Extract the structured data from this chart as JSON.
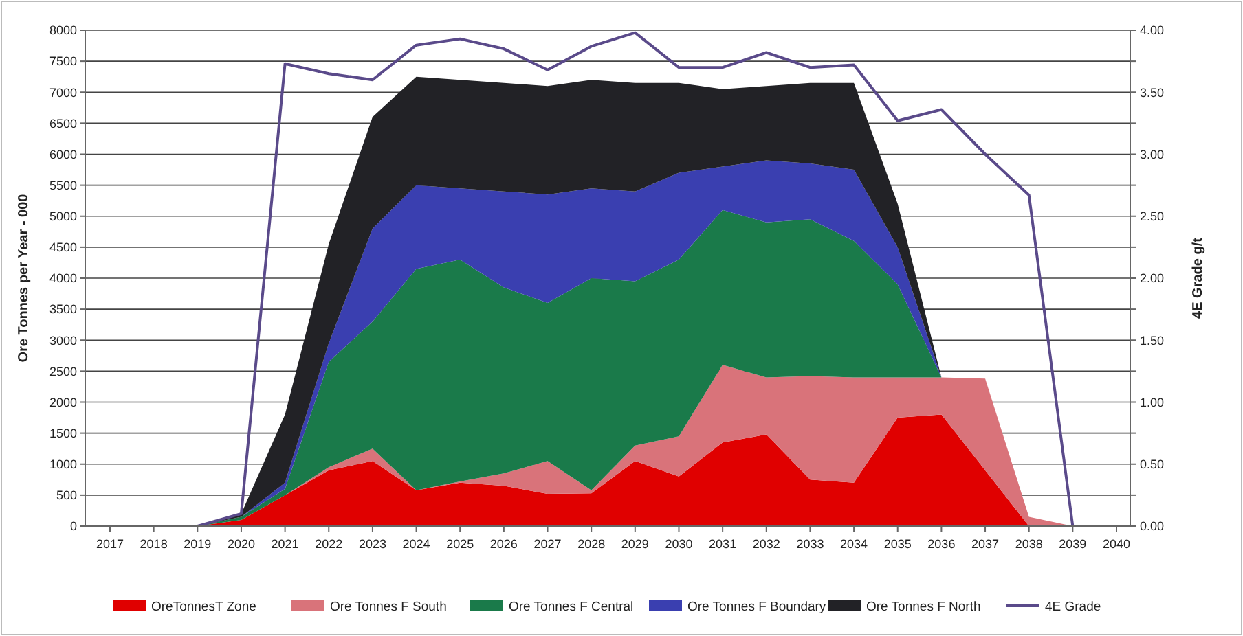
{
  "chart_data": {
    "type": "area",
    "stacked": true,
    "ylabel": "Ore Tonnes per Year - 000",
    "y2label": "4E Grade g/t",
    "categories": [
      "2017",
      "2018",
      "2019",
      "2020",
      "2021",
      "2022",
      "2023",
      "2024",
      "2025",
      "2026",
      "2027",
      "2028",
      "2029",
      "2030",
      "2031",
      "2032",
      "2033",
      "2034",
      "2035",
      "2036",
      "2037",
      "2038",
      "2039",
      "2040"
    ],
    "series": [
      {
        "name": "OreTonnesT Zone",
        "color": "#e00000",
        "values": [
          0,
          0,
          0,
          100,
          500,
          900,
          1050,
          580,
          700,
          650,
          520,
          530,
          1050,
          800,
          1350,
          1480,
          750,
          700,
          1750,
          1800,
          900,
          0,
          0,
          0
        ]
      },
      {
        "name": "Ore Tonnes F South",
        "color": "#d9737a",
        "values": [
          0,
          0,
          0,
          0,
          0,
          50,
          200,
          0,
          20,
          200,
          530,
          50,
          250,
          650,
          1250,
          920,
          1670,
          1700,
          650,
          600,
          1480,
          150,
          0,
          0
        ]
      },
      {
        "name": "Ore Tonnes F Central",
        "color": "#1a7a4a",
        "values": [
          0,
          0,
          0,
          50,
          100,
          1700,
          2050,
          3570,
          3580,
          3000,
          2550,
          3420,
          2650,
          2850,
          2500,
          2500,
          2530,
          2200,
          1500,
          0,
          0,
          0,
          0,
          0
        ]
      },
      {
        "name": "Ore Tonnes F Boundary",
        "color": "#3a3fb0",
        "values": [
          0,
          0,
          0,
          0,
          100,
          300,
          1500,
          1350,
          1150,
          1550,
          1750,
          1450,
          1450,
          1400,
          700,
          1000,
          900,
          1150,
          600,
          0,
          0,
          0,
          0,
          0
        ]
      },
      {
        "name": "Ore Tonnes F North",
        "color": "#222226",
        "values": [
          0,
          0,
          0,
          50,
          1100,
          1600,
          1800,
          1750,
          1750,
          1750,
          1750,
          1750,
          1750,
          1450,
          1250,
          1200,
          1300,
          1400,
          700,
          0,
          0,
          0,
          0,
          0
        ]
      },
      {
        "name": "4E Grade",
        "type": "line",
        "axis": "y2",
        "color": "#5a4a8a",
        "values": [
          0,
          0,
          0,
          0.1,
          3.73,
          3.65,
          3.6,
          3.88,
          3.93,
          3.85,
          3.68,
          3.87,
          3.98,
          3.7,
          3.7,
          3.82,
          3.7,
          3.72,
          3.27,
          3.36,
          3.0,
          2.67,
          0,
          0
        ]
      }
    ],
    "ylim": [
      0,
      8000
    ],
    "yticks": [
      0,
      500,
      1000,
      1500,
      2000,
      2500,
      3000,
      3500,
      4000,
      4500,
      5000,
      5500,
      6000,
      6500,
      7000,
      7500,
      8000
    ],
    "y2lim": [
      0,
      4
    ],
    "y2ticks": [
      {
        "value": 0,
        "label": "0.00"
      },
      {
        "value": 0.25,
        "label": null
      },
      {
        "value": 0.5,
        "label": "0.50"
      },
      {
        "value": 0.75,
        "label": null
      },
      {
        "value": 1,
        "label": "1.00"
      },
      {
        "value": 1.25,
        "label": null
      },
      {
        "value": 1.5,
        "label": "1.50"
      },
      {
        "value": 1.75,
        "label": null
      },
      {
        "value": 2,
        "label": "2.00"
      },
      {
        "value": 2.25,
        "label": null
      },
      {
        "value": 2.5,
        "label": "2.50"
      },
      {
        "value": 2.75,
        "label": null
      },
      {
        "value": 3,
        "label": "3.00"
      },
      {
        "value": 3.25,
        "label": null
      },
      {
        "value": 3.5,
        "label": "3.50"
      },
      {
        "value": 3.75,
        "label": null
      },
      {
        "value": 4,
        "label": "4.00"
      }
    ],
    "grid": "y",
    "legend": "bottom",
    "line_style": "solid",
    "marker": "none"
  }
}
